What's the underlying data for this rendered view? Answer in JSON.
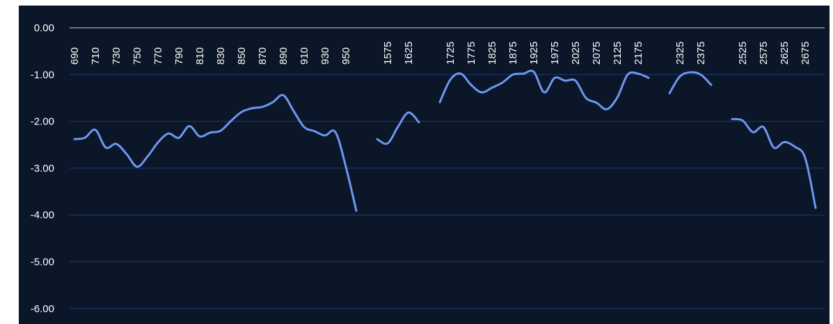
{
  "chart_data": {
    "type": "line",
    "categories": [
      "690",
      null,
      "710",
      null,
      "730",
      null,
      "750",
      null,
      "770",
      null,
      "790",
      null,
      "810",
      null,
      "830",
      null,
      "850",
      null,
      "870",
      null,
      "890",
      null,
      "910",
      null,
      "930",
      null,
      "950",
      null,
      null,
      null,
      "1575",
      null,
      "1625",
      null,
      null,
      null,
      "1725",
      null,
      "1775",
      null,
      "1825",
      null,
      "1875",
      null,
      "1925",
      null,
      "1975",
      null,
      "2025",
      null,
      "2075",
      null,
      "2125",
      null,
      "2175",
      null,
      null,
      null,
      "2325",
      null,
      "2375",
      null,
      null,
      null,
      "2525",
      null,
      "2575",
      null,
      "2625",
      null,
      "2675",
      null
    ],
    "series": [
      {
        "color": "#6d97f2",
        "values": [
          -2.38,
          -2.35,
          -2.18,
          -2.56,
          -2.48,
          -2.7,
          -2.97,
          -2.75,
          -2.45,
          -2.26,
          -2.35,
          -2.1,
          -2.32,
          -2.24,
          -2.2,
          -1.99,
          -1.8,
          -1.72,
          -1.69,
          -1.59,
          -1.44,
          -1.78,
          -2.12,
          -2.21,
          -2.3,
          -2.23,
          -2.97,
          -3.91,
          null,
          -2.38,
          -2.47,
          -2.11,
          -1.81,
          -2.02,
          null,
          -1.59,
          -1.11,
          -0.98,
          -1.22,
          -1.38,
          -1.28,
          -1.17,
          -1.0,
          -0.98,
          -0.94,
          -1.38,
          -1.07,
          -1.13,
          -1.13,
          -1.5,
          -1.6,
          -1.74,
          -1.49,
          -1.0,
          -0.98,
          -1.07,
          null,
          -1.4,
          -1.04,
          -0.95,
          -1.0,
          -1.22,
          null,
          -1.95,
          -1.98,
          -2.23,
          -2.12,
          -2.56,
          -2.44,
          -2.54,
          -2.78,
          -3.85
        ]
      }
    ],
    "ylim": [
      -6.33,
      0
    ],
    "yticks": [
      {
        "value": 0,
        "label": "0.00"
      },
      {
        "value": -1,
        "label": "-1.00"
      },
      {
        "value": -2,
        "label": "-2.00"
      },
      {
        "value": -3,
        "label": "-3.00"
      },
      {
        "value": -4,
        "label": "-4.00"
      },
      {
        "value": -5,
        "label": "-5.00"
      },
      {
        "value": -6,
        "label": "-6.00"
      }
    ],
    "grid": true
  }
}
